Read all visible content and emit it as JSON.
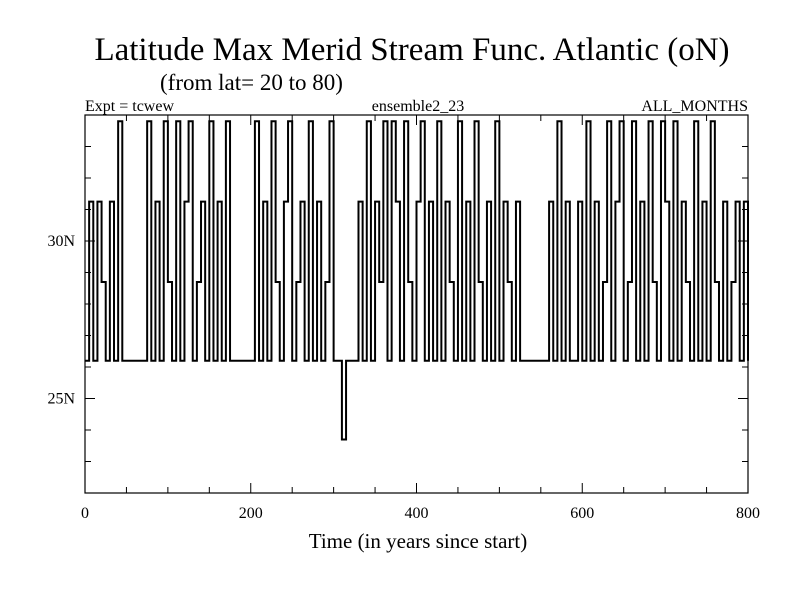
{
  "chart_data": {
    "type": "line",
    "title": "Latitude Max Merid Stream Func. Atlantic (oN)",
    "subtitle": "(from lat= 20 to 80)",
    "left_label": "Expt = tcwew",
    "center_label": "ensemble2_23",
    "right_label": "ALL_MONTHS",
    "xlabel": "Time (in years since start)",
    "ylabel": "",
    "xlim": [
      0,
      800
    ],
    "ylim": [
      22,
      34
    ],
    "x_ticks": [
      0,
      200,
      400,
      600,
      800
    ],
    "x_tick_labels": [
      "0",
      "200",
      "400",
      "600",
      "800"
    ],
    "x_minor_step": 50,
    "y_ticks": [
      25,
      30
    ],
    "y_tick_labels": [
      "25N",
      "30N"
    ],
    "y_minor_step": 1,
    "grid": false,
    "color": "#000000",
    "series": [
      {
        "name": "ensemble2_23",
        "x_start": 0,
        "x_step": 5,
        "values": [
          26.2,
          31.25,
          26.2,
          31.25,
          28.7,
          26.2,
          31.25,
          26.2,
          33.8,
          26.2,
          26.2,
          26.2,
          26.2,
          26.2,
          26.2,
          33.8,
          26.2,
          31.25,
          26.2,
          33.8,
          28.7,
          26.2,
          33.8,
          26.2,
          31.25,
          33.8,
          26.2,
          28.7,
          31.25,
          26.2,
          33.8,
          26.2,
          31.25,
          26.2,
          33.8,
          26.2,
          26.2,
          26.2,
          26.2,
          26.2,
          26.2,
          33.8,
          26.2,
          31.25,
          26.2,
          33.8,
          28.7,
          26.2,
          31.25,
          33.8,
          26.2,
          28.7,
          31.25,
          26.2,
          33.8,
          26.2,
          31.25,
          26.2,
          28.7,
          33.8,
          26.2,
          26.2,
          23.7,
          26.2,
          26.2,
          26.2,
          31.25,
          26.2,
          33.8,
          26.2,
          31.25,
          28.7,
          33.8,
          26.2,
          33.8,
          31.25,
          26.2,
          33.8,
          28.7,
          26.2,
          31.25,
          33.8,
          26.2,
          31.25,
          26.2,
          33.8,
          26.2,
          31.25,
          28.7,
          26.2,
          33.8,
          26.2,
          31.25,
          26.2,
          33.8,
          28.7,
          26.2,
          31.25,
          26.2,
          33.8,
          26.2,
          31.25,
          28.7,
          26.2,
          31.25,
          26.2,
          26.2,
          26.2,
          26.2,
          26.2,
          26.2,
          26.2,
          31.25,
          26.2,
          33.8,
          26.2,
          31.25,
          26.2,
          26.2,
          31.25,
          26.2,
          33.8,
          26.2,
          31.25,
          26.2,
          28.7,
          33.8,
          26.2,
          31.25,
          33.8,
          26.2,
          28.7,
          33.8,
          26.2,
          31.25,
          26.2,
          33.8,
          28.7,
          26.2,
          33.8,
          31.25,
          26.2,
          33.8,
          26.2,
          31.25,
          28.7,
          26.2,
          33.8,
          26.2,
          31.25,
          26.2,
          33.8,
          28.7,
          26.2,
          31.25,
          26.2,
          28.7,
          31.25,
          26.2,
          31.25,
          26.2
        ]
      }
    ]
  }
}
